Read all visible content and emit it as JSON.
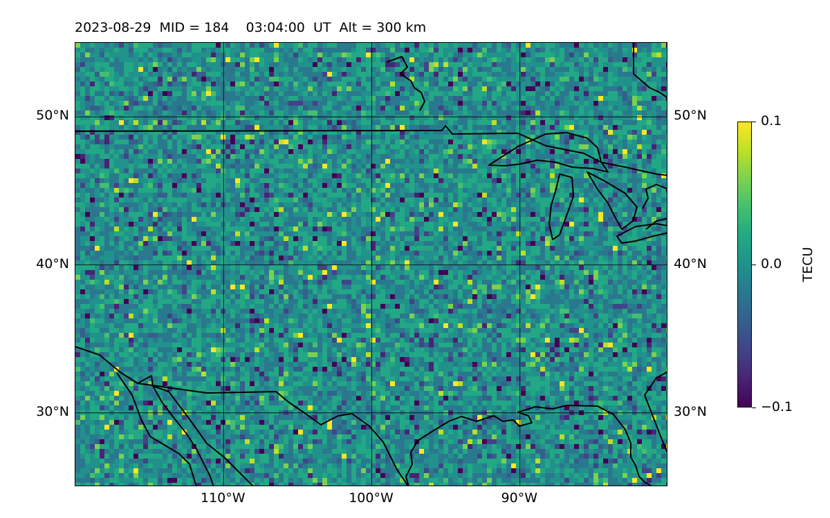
{
  "title": "2023-08-29  MID = 184    03:04:00  UT  Alt = 300 km",
  "map": {
    "lon_range": [
      -120,
      -80
    ],
    "lat_range": [
      25,
      55
    ],
    "lat_ticks": [
      {
        "value": 50,
        "label": "50°N"
      },
      {
        "value": 40,
        "label": "40°N"
      },
      {
        "value": 30,
        "label": "30°N"
      }
    ],
    "lon_ticks": [
      {
        "value": -110,
        "label": "110°W"
      },
      {
        "value": -100,
        "label": "100°W"
      },
      {
        "value": -90,
        "label": "90°W"
      }
    ],
    "colormap": "viridis",
    "background_colors": {
      "low": "#440154",
      "mid": "#21918c",
      "high": "#fde725"
    }
  },
  "colorbar": {
    "label": "TECU",
    "min": -0.1,
    "max": 0.1,
    "ticks": [
      {
        "value": 0.1,
        "label": "0.1"
      },
      {
        "value": 0.0,
        "label": "0.0"
      },
      {
        "value": -0.1,
        "label": "−0.1"
      }
    ]
  }
}
